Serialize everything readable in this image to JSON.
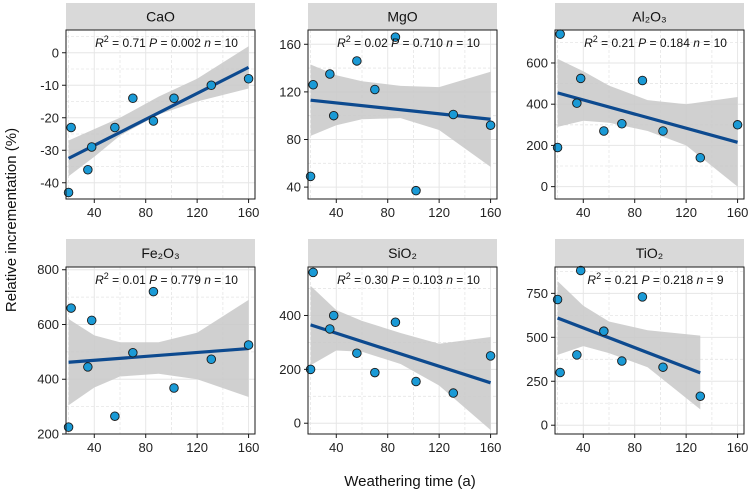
{
  "figure": {
    "ylabel": "Relative incrementation (%)",
    "xlabel": "Weathering time (a)"
  },
  "colors": {
    "point_fill": "#1a9ad6",
    "point_stroke": "#1a1a1a",
    "line": "#0d4a8f",
    "ribbon": "#c8c8c8",
    "strip": "#d9d9d9",
    "grid": "#e6e6e6"
  },
  "chart_data": [
    {
      "type": "scatter",
      "title": "CaO",
      "stats": {
        "r2": "0.71",
        "p": "0.002",
        "n": "10"
      },
      "x": [
        20,
        22,
        35,
        38,
        56,
        70,
        86,
        102,
        131,
        160
      ],
      "y": [
        -43,
        -23,
        -36,
        -29,
        -23,
        -14,
        -21,
        -14,
        -10,
        -8
      ],
      "fit": {
        "x": [
          20,
          160
        ],
        "y": [
          -32.5,
          -4.5
        ]
      },
      "band": {
        "x": [
          20,
          40,
          60,
          90,
          120,
          160
        ],
        "lower": [
          -38,
          -32,
          -25.5,
          -19,
          -15,
          -11
        ],
        "upper": [
          -27,
          -23.5,
          -20,
          -13.5,
          -8,
          2
        ]
      },
      "xlim": [
        18,
        165
      ],
      "ylim": [
        -45,
        7
      ],
      "xticks": [
        40,
        80,
        120,
        160
      ],
      "yticks": [
        -40,
        -30,
        -20,
        -10,
        0
      ]
    },
    {
      "type": "scatter",
      "title": "MgO",
      "stats": {
        "r2": "0.02",
        "p": "0.710",
        "n": "10"
      },
      "x": [
        20,
        22,
        35,
        38,
        56,
        70,
        86,
        102,
        131,
        160
      ],
      "y": [
        49,
        126,
        135,
        100,
        146,
        122,
        166,
        37,
        101,
        92
      ],
      "fit": {
        "x": [
          20,
          160
        ],
        "y": [
          113,
          97
        ]
      },
      "band": {
        "x": [
          20,
          40,
          60,
          90,
          120,
          160
        ],
        "lower": [
          83,
          92,
          97,
          98,
          88,
          57
        ],
        "upper": [
          143,
          134,
          129,
          125,
          124,
          137
        ]
      },
      "xlim": [
        18,
        165
      ],
      "ylim": [
        30,
        172
      ],
      "xticks": [
        40,
        80,
        120,
        160
      ],
      "yticks": [
        40,
        80,
        120,
        160
      ]
    },
    {
      "type": "scatter",
      "title": "Al₂O₃",
      "stats": {
        "r2": "0.21",
        "p": "0.184",
        "n": "10"
      },
      "x": [
        20,
        22,
        35,
        38,
        56,
        70,
        86,
        102,
        131,
        160
      ],
      "y": [
        190,
        740,
        405,
        525,
        270,
        305,
        515,
        270,
        140,
        300
      ],
      "fit": {
        "x": [
          20,
          160
        ],
        "y": [
          455,
          215
        ]
      },
      "band": {
        "x": [
          20,
          40,
          60,
          90,
          120,
          160
        ],
        "lower": [
          290,
          320,
          310,
          270,
          200,
          0
        ],
        "upper": [
          620,
          560,
          490,
          420,
          400,
          435
        ]
      },
      "xlim": [
        18,
        165
      ],
      "ylim": [
        -60,
        760
      ],
      "xticks": [
        40,
        80,
        120,
        160
      ],
      "yticks": [
        0,
        200,
        400,
        600
      ]
    },
    {
      "type": "scatter",
      "title": "Fe₂O₃",
      "stats": {
        "r2": "0.01",
        "p": "0.779",
        "n": "10"
      },
      "x": [
        20,
        22,
        35,
        38,
        56,
        70,
        86,
        102,
        131,
        160
      ],
      "y": [
        225,
        660,
        445,
        615,
        265,
        497,
        720,
        368,
        473,
        525
      ],
      "fit": {
        "x": [
          20,
          160
        ],
        "y": [
          462,
          512
        ]
      },
      "band": {
        "x": [
          20,
          40,
          60,
          90,
          120,
          160
        ],
        "lower": [
          305,
          370,
          410,
          420,
          400,
          335
        ],
        "upper": [
          620,
          560,
          535,
          535,
          570,
          690
        ]
      },
      "xlim": [
        18,
        165
      ],
      "ylim": [
        200,
        810
      ],
      "xticks": [
        40,
        80,
        120,
        160
      ],
      "yticks": [
        200,
        400,
        600,
        800
      ]
    },
    {
      "type": "scatter",
      "title": "SiO₂",
      "stats": {
        "r2": "0.30",
        "p": "0.103",
        "n": "10"
      },
      "x": [
        20,
        22,
        35,
        38,
        56,
        70,
        86,
        102,
        131,
        160
      ],
      "y": [
        200,
        560,
        350,
        400,
        260,
        188,
        375,
        155,
        112,
        250
      ],
      "fit": {
        "x": [
          20,
          160
        ],
        "y": [
          365,
          150
        ]
      },
      "band": {
        "x": [
          20,
          40,
          60,
          90,
          120,
          160
        ],
        "lower": [
          215,
          270,
          265,
          220,
          140,
          -25
        ],
        "upper": [
          510,
          420,
          380,
          335,
          295,
          320
        ]
      },
      "xlim": [
        18,
        165
      ],
      "ylim": [
        -40,
        580
      ],
      "xticks": [
        40,
        80,
        120,
        160
      ],
      "yticks": [
        0,
        200,
        400
      ]
    },
    {
      "type": "scatter",
      "title": "TiO₂",
      "stats": {
        "r2": "0.21",
        "p": "0.218",
        "n": "9"
      },
      "x": [
        20,
        22,
        35,
        38,
        56,
        70,
        86,
        102,
        131
      ],
      "y": [
        715,
        300,
        400,
        880,
        535,
        365,
        730,
        330,
        165
      ],
      "fit": {
        "x": [
          20,
          131
        ],
        "y": [
          610,
          298
        ]
      },
      "band": {
        "x": [
          20,
          40,
          60,
          90,
          131
        ],
        "lower": [
          400,
          450,
          410,
          330,
          90
        ],
        "upper": [
          820,
          680,
          590,
          540,
          510
        ]
      },
      "xlim": [
        18,
        165
      ],
      "ylim": [
        -50,
        900
      ],
      "xticks": [
        40,
        80,
        120,
        160
      ],
      "yticks": [
        0,
        250,
        500,
        750
      ]
    }
  ]
}
